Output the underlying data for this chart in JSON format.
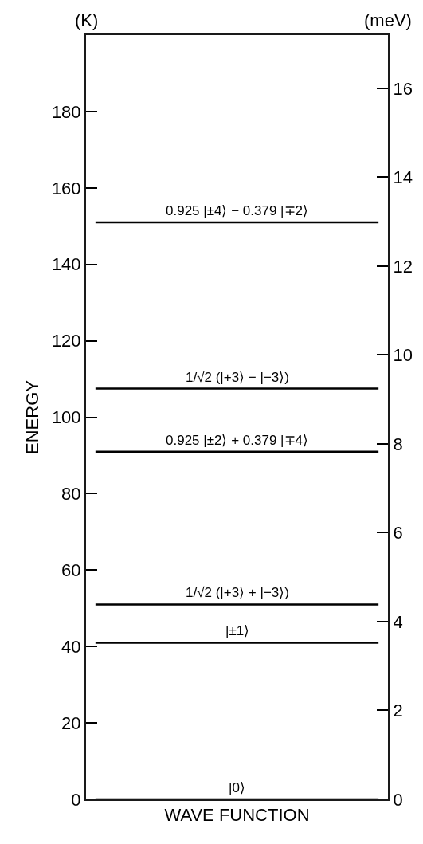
{
  "chart_data": {
    "type": "line",
    "xlabel": "WAVE FUNCTION",
    "ylabel": "ENERGY",
    "y2label": "(meV)",
    "annotations": [
      "(K)"
    ],
    "categories": [
      null,
      null,
      null,
      null,
      null,
      null,
      null,
      null,
      null,
      null,
      null,
      null,
      null,
      null,
      null,
      null
    ],
    "ylim": [
      0,
      200
    ],
    "yticks": [
      0,
      20,
      40,
      60,
      80,
      100,
      120,
      140,
      160,
      180
    ],
    "y2lim": [
      0,
      17.2
    ],
    "y2ticks": [
      0,
      2,
      4,
      6,
      8,
      10,
      12,
      14,
      16
    ],
    "series": [
      {
        "name": "|0⟩",
        "color": "#000000",
        "values": [
          0,
          0,
          0,
          0,
          0,
          0,
          0,
          0,
          0,
          0,
          0,
          0,
          0,
          0,
          0,
          0
        ]
      },
      {
        "name": "|±1⟩",
        "color": "#000000",
        "values": [
          41,
          41,
          41,
          41,
          41,
          41,
          41,
          41,
          41,
          41,
          41,
          41,
          41,
          41,
          41,
          41
        ]
      },
      {
        "name": "1/√2 (|+3⟩ + |−3⟩)",
        "color": "#000000",
        "values": [
          51,
          51,
          51,
          51,
          51,
          51,
          51,
          51,
          51,
          51,
          51,
          51,
          51,
          51,
          51,
          51
        ]
      },
      {
        "name": "0.925 |±2⟩ + 0.379 |∓4⟩",
        "color": "#000000",
        "values": [
          91,
          91,
          91,
          91,
          91,
          91,
          91,
          91,
          91,
          91,
          91,
          91,
          91,
          91,
          91,
          91
        ]
      },
      {
        "name": "1/√2 (|+3⟩ − |−3⟩)",
        "color": "#000000",
        "values": [
          107.5,
          107.5,
          107.5,
          107.5,
          107.5,
          107.5,
          107.5,
          107.5,
          107.5,
          107.5,
          107.5,
          107.5,
          107.5,
          107.5,
          107.5,
          107.5
        ]
      },
      {
        "name": "0.925 |±4⟩ − 0.379 |∓2⟩",
        "color": "#000000",
        "values": [
          151,
          151,
          151,
          151,
          151,
          151,
          151,
          151,
          151,
          151,
          151,
          151,
          151,
          151,
          151,
          151
        ]
      }
    ]
  }
}
